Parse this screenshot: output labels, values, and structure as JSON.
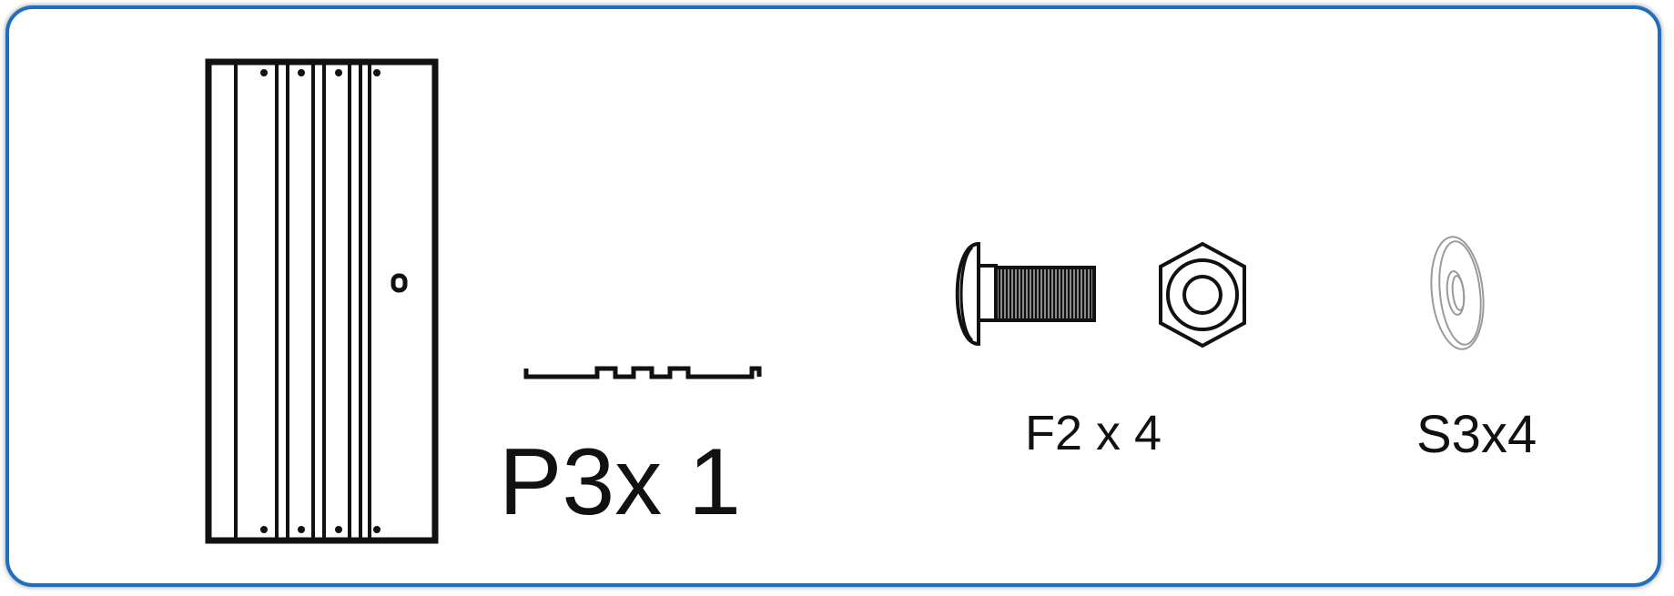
{
  "parts": [
    {
      "id": "P3",
      "label": "P3x 1",
      "icon": "panel-icon"
    },
    {
      "id": "F2",
      "label": "F2 x 4",
      "icon": "bolt-and-nut-icon"
    },
    {
      "id": "S3",
      "label": "S3x4",
      "icon": "washer-icon"
    }
  ],
  "colors": {
    "frame_border": "#1f6fc0",
    "line_art": "#111111",
    "washer_line": "#9a9a9a"
  }
}
